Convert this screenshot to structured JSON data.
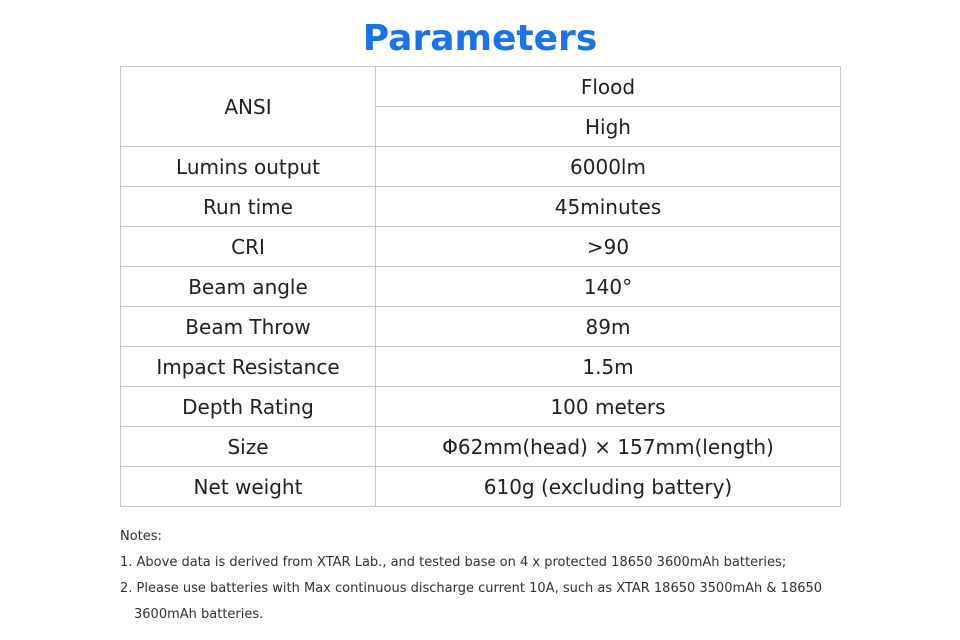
{
  "page": {
    "title": "Parameters",
    "title_color": "#1a73e8"
  },
  "table": {
    "ansi_label": "ANSI",
    "header_values": [
      "Flood",
      "High"
    ],
    "rows": [
      {
        "label": "Lumins output",
        "value": "6000lm"
      },
      {
        "label": "Run time",
        "value": "45minutes"
      },
      {
        "label": "CRI",
        "value": ">90"
      },
      {
        "label": "Beam angle",
        "value": "140°"
      },
      {
        "label": "Beam Throw",
        "value": "89m"
      },
      {
        "label": "Impact Resistance",
        "value": "1.5m"
      },
      {
        "label": "Depth Rating",
        "value": "100 meters"
      },
      {
        "label": "Size",
        "value": "Φ62mm(head) × 157mm(length)"
      },
      {
        "label": "Net weight",
        "value": "610g (excluding battery)"
      }
    ]
  },
  "notes": {
    "heading": "Notes:",
    "items": [
      "1. Above data is derived from XTAR Lab., and tested base on 4 x protected 18650 3600mAh batteries;",
      "2. Please use batteries with Max continuous discharge current 10A, such as XTAR 18650 3500mAh & 18650",
      "3600mAh batteries."
    ]
  }
}
